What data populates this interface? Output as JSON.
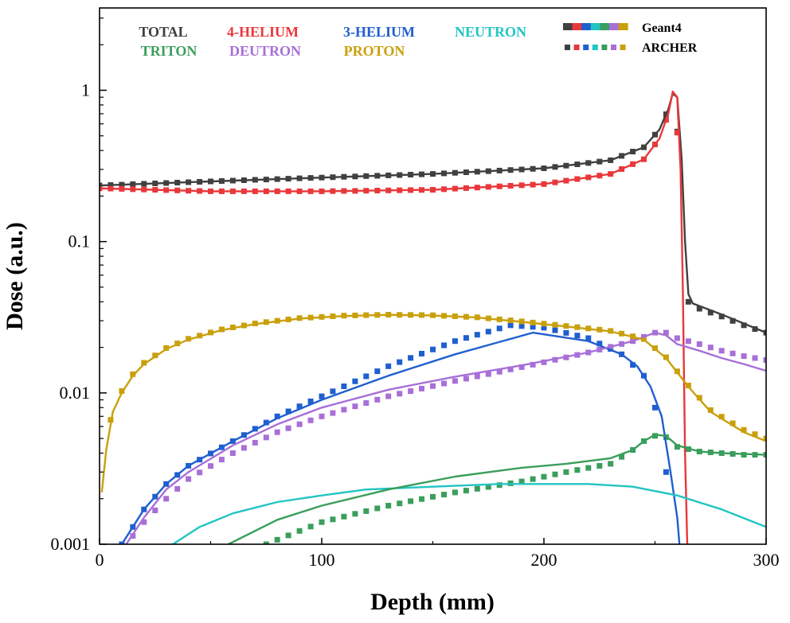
{
  "chart_data": {
    "type": "line",
    "title": "",
    "xlabel": "Depth (mm)",
    "ylabel": "Dose (a.u.)",
    "xscale": "linear",
    "yscale": "log",
    "xlim": [
      0,
      300
    ],
    "ylim": [
      0.001,
      3.5
    ],
    "xticks": [
      0,
      100,
      200,
      300
    ],
    "xtick_labels": [
      "0",
      "100",
      "200",
      "300"
    ],
    "yticks": [
      0.001,
      0.01,
      0.1,
      1
    ],
    "ytick_labels": [
      "0.001",
      "0.01",
      "0.1",
      "1"
    ],
    "grid": false,
    "legend_position": "top",
    "legend_styles": [
      {
        "name": "Geant4",
        "marker": "line"
      },
      {
        "name": "ARCHER",
        "marker": "square"
      }
    ],
    "series": [
      {
        "name": "TOTAL",
        "color": "#404040",
        "geant4": {
          "x": [
            0,
            50,
            100,
            150,
            200,
            230,
            245,
            252,
            256,
            258,
            260,
            262,
            263.5,
            265,
            267,
            280,
            300
          ],
          "y": [
            0.235,
            0.25,
            0.265,
            0.28,
            0.305,
            0.345,
            0.42,
            0.55,
            0.75,
            0.95,
            0.9,
            0.35,
            0.1,
            0.045,
            0.039,
            0.033,
            0.025
          ]
        },
        "archer": {
          "x": [
            0,
            50,
            100,
            150,
            200,
            230,
            245,
            252,
            256,
            258,
            262,
            265,
            270,
            280,
            290,
            300
          ],
          "y": [
            0.235,
            0.25,
            0.265,
            0.28,
            0.305,
            0.345,
            0.42,
            0.55,
            0.75,
            0.95,
            0.3,
            0.04,
            0.036,
            0.032,
            0.028,
            0.025
          ]
        }
      },
      {
        "name": "4-HELIUM",
        "color": "#e8383b",
        "geant4": {
          "x": [
            0,
            50,
            100,
            150,
            200,
            230,
            245,
            252,
            256,
            258,
            260,
            261.5,
            262.5,
            263.5,
            264.5
          ],
          "y": [
            0.225,
            0.215,
            0.215,
            0.22,
            0.24,
            0.28,
            0.35,
            0.48,
            0.7,
            0.98,
            0.9,
            0.3,
            0.05,
            0.004,
            0.001
          ]
        },
        "archer": {
          "x": [
            0,
            50,
            100,
            150,
            200,
            230,
            245,
            252,
            256,
            258,
            262
          ],
          "y": [
            0.225,
            0.215,
            0.215,
            0.22,
            0.24,
            0.28,
            0.35,
            0.48,
            0.7,
            0.95,
            0.29
          ]
        }
      },
      {
        "name": "3-HELIUM",
        "color": "#1f5fcf",
        "geant4": {
          "x": [
            10,
            15,
            20,
            30,
            40,
            60,
            80,
            100,
            130,
            160,
            195,
            220,
            235,
            242,
            248,
            253,
            257,
            260,
            261
          ],
          "y": [
            0.001,
            0.0013,
            0.0017,
            0.0025,
            0.0033,
            0.0048,
            0.0068,
            0.009,
            0.013,
            0.018,
            0.025,
            0.022,
            0.018,
            0.015,
            0.011,
            0.007,
            0.003,
            0.0015,
            0.001
          ]
        },
        "archer": {
          "x": [
            10,
            15,
            20,
            30,
            40,
            60,
            80,
            100,
            130,
            160,
            185,
            200,
            220,
            235,
            245,
            250,
            255,
            258
          ],
          "y": [
            0.001,
            0.0013,
            0.0017,
            0.0025,
            0.0033,
            0.0048,
            0.007,
            0.0095,
            0.015,
            0.022,
            0.028,
            0.027,
            0.023,
            0.018,
            0.013,
            0.008,
            0.003,
            0.0015
          ]
        }
      },
      {
        "name": "NEUTRON",
        "color": "#22c4c4",
        "geant4": {
          "x": [
            33,
            45,
            60,
            80,
            100,
            120,
            150,
            180,
            200,
            220,
            240,
            260,
            280,
            300
          ],
          "y": [
            0.001,
            0.0013,
            0.0016,
            0.0019,
            0.0021,
            0.0023,
            0.0024,
            0.0025,
            0.0025,
            0.0025,
            0.0024,
            0.0021,
            0.0017,
            0.0013
          ]
        }
      },
      {
        "name": "TRITON",
        "color": "#3a9e5c",
        "geant4": {
          "x": [
            58,
            80,
            100,
            130,
            160,
            190,
            210,
            230,
            240,
            245,
            250,
            255,
            260,
            270,
            280,
            300
          ],
          "y": [
            0.001,
            0.00145,
            0.0018,
            0.0023,
            0.0028,
            0.0032,
            0.0034,
            0.0037,
            0.0042,
            0.0048,
            0.0053,
            0.0052,
            0.0045,
            0.0041,
            0.004,
            0.0039
          ]
        },
        "archer": {
          "x": [
            75,
            100,
            130,
            160,
            190,
            210,
            230,
            240,
            245,
            250,
            255,
            260,
            270,
            280,
            290,
            300
          ],
          "y": [
            0.001,
            0.0014,
            0.0018,
            0.0022,
            0.0026,
            0.003,
            0.0034,
            0.0042,
            0.0048,
            0.0052,
            0.0051,
            0.0044,
            0.0041,
            0.004,
            0.0039,
            0.0039
          ]
        }
      },
      {
        "name": "DEUTRON",
        "color": "#a86fd8",
        "geant4": {
          "x": [
            12,
            20,
            30,
            40,
            60,
            80,
            100,
            130,
            160,
            190,
            220,
            240,
            250,
            255,
            260,
            270,
            280,
            290,
            300
          ],
          "y": [
            0.001,
            0.0015,
            0.0023,
            0.003,
            0.0045,
            0.0062,
            0.008,
            0.0105,
            0.0128,
            0.0152,
            0.0185,
            0.022,
            0.025,
            0.024,
            0.021,
            0.019,
            0.017,
            0.0155,
            0.014
          ]
        },
        "archer": {
          "x": [
            12,
            20,
            30,
            40,
            60,
            80,
            100,
            130,
            160,
            190,
            220,
            240,
            250,
            255,
            260,
            270,
            280,
            290,
            300
          ],
          "y": [
            0.001,
            0.0014,
            0.002,
            0.0027,
            0.004,
            0.0055,
            0.007,
            0.0095,
            0.012,
            0.0148,
            0.0185,
            0.022,
            0.025,
            0.025,
            0.023,
            0.021,
            0.019,
            0.0175,
            0.0165
          ]
        }
      },
      {
        "name": "PROTON",
        "color": "#c9a00c",
        "geant4": {
          "x": [
            1,
            3,
            6,
            10,
            15,
            20,
            30,
            40,
            55,
            70,
            90,
            110,
            130,
            150,
            170,
            190,
            210,
            230,
            245,
            255,
            265,
            275,
            290,
            300
          ],
          "y": [
            0.0022,
            0.0042,
            0.0075,
            0.01,
            0.013,
            0.0155,
            0.0195,
            0.0225,
            0.026,
            0.0285,
            0.031,
            0.0322,
            0.0328,
            0.0325,
            0.0315,
            0.0295,
            0.0275,
            0.0255,
            0.0225,
            0.017,
            0.011,
            0.0075,
            0.0055,
            0.0048
          ]
        },
        "archer": {
          "x": [
            1,
            3,
            6,
            10,
            15,
            20,
            30,
            40,
            55,
            70,
            90,
            110,
            130,
            150,
            170,
            190,
            210,
            230,
            245,
            255,
            265,
            275,
            290,
            300
          ],
          "y": [
            0.0027,
            0.0048,
            0.0078,
            0.0103,
            0.0133,
            0.0158,
            0.0198,
            0.0228,
            0.0263,
            0.0288,
            0.0312,
            0.0324,
            0.0329,
            0.0326,
            0.0316,
            0.0297,
            0.0277,
            0.0257,
            0.0227,
            0.0172,
            0.0112,
            0.0077,
            0.0057,
            0.005
          ]
        }
      }
    ]
  }
}
